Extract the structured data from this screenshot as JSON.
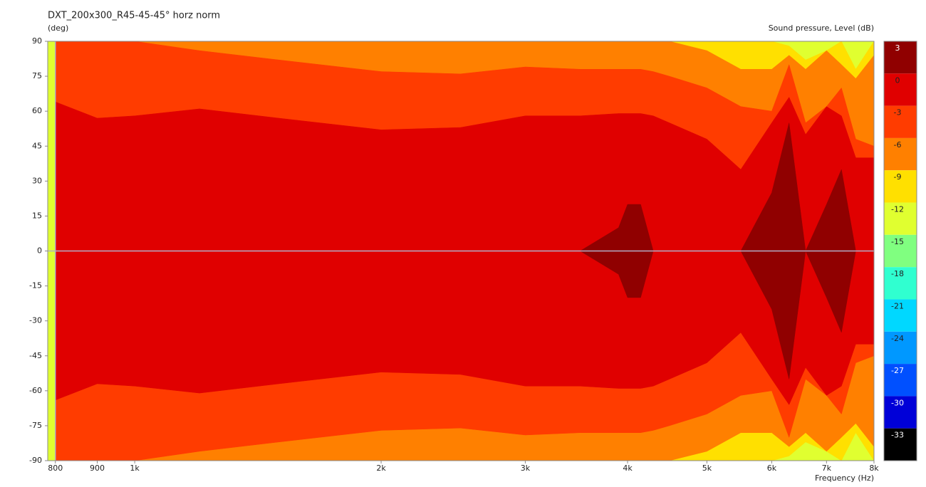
{
  "chart_data": {
    "type": "contour",
    "title": "DXT_200x300_R45-45-45° horz norm",
    "y_label": "(deg)",
    "x_label": "Frequency  (Hz)",
    "colorbar_label": "Sound pressure, Level  (dB)",
    "x": [
      800,
      900,
      1000,
      1200,
      1500,
      2000,
      2500,
      3000,
      3500,
      3900,
      4000,
      4150,
      4300,
      4500,
      5000,
      5500,
      6000,
      6300,
      6600,
      7000,
      7300,
      7600,
      8000
    ],
    "background_color": "#e0ff30",
    "series": [
      {
        "color": "#ffe000",
        "values": [
          90,
          90,
          90,
          90,
          90,
          90,
          90,
          90,
          90,
          90,
          90,
          90,
          90,
          90,
          90,
          90,
          90,
          88,
          82,
          86,
          90,
          78,
          90
        ]
      },
      {
        "color": "#ff8000",
        "values": [
          90,
          90,
          90,
          90,
          90,
          90,
          90,
          90,
          90,
          90,
          90,
          90,
          90,
          90,
          86,
          78,
          78,
          84,
          78,
          86,
          80,
          74,
          84
        ]
      },
      {
        "color": "#ff3c00",
        "values": [
          90,
          90,
          90,
          86,
          82,
          77,
          76,
          79,
          78,
          78,
          78,
          78,
          77,
          75,
          70,
          62,
          60,
          80,
          55,
          62,
          70,
          48,
          45
        ]
      },
      {
        "color": "#e00000",
        "values": [
          64,
          57,
          58,
          61,
          57,
          52,
          53,
          58,
          58,
          59,
          59,
          59,
          58,
          55,
          48,
          35,
          55,
          66,
          50,
          62,
          58,
          40,
          40
        ]
      },
      {
        "color": "#900000",
        "values": [
          0,
          0,
          0,
          0,
          0,
          0,
          0,
          0,
          0,
          10,
          20,
          20,
          0,
          0,
          0,
          0,
          25,
          55,
          0,
          20,
          35,
          0,
          0
        ]
      }
    ],
    "xlog": true,
    "xlim": [
      783,
      8000
    ],
    "xticks": [
      800,
      900,
      {
        "value": 1000,
        "label": "1k"
      },
      {
        "value": 2000,
        "label": "2k"
      },
      {
        "value": 3000,
        "label": "3k"
      },
      {
        "value": 4000,
        "label": "4k"
      },
      {
        "value": 5000,
        "label": "5k"
      },
      {
        "value": 6000,
        "label": "6k"
      },
      {
        "value": 7000,
        "label": "7k"
      },
      {
        "value": 8000,
        "label": "8k"
      }
    ],
    "ylim": [
      -90,
      90
    ],
    "yticks": [
      -90,
      -75,
      -60,
      -45,
      -30,
      -15,
      0,
      15,
      30,
      45,
      60,
      75,
      90
    ],
    "colorbar_levels": [
      3,
      0,
      -3,
      -6,
      -9,
      -12,
      -15,
      -18,
      -21,
      -24,
      -27,
      -30,
      -33
    ],
    "colorbar_colors": [
      "#900000",
      "#e00000",
      "#ff3c00",
      "#ff8000",
      "#ffe000",
      "#e0ff30",
      "#80ff80",
      "#30ffd0",
      "#00d8ff",
      "#0098ff",
      "#0050ff",
      "#0000d8",
      "#000000"
    ]
  }
}
